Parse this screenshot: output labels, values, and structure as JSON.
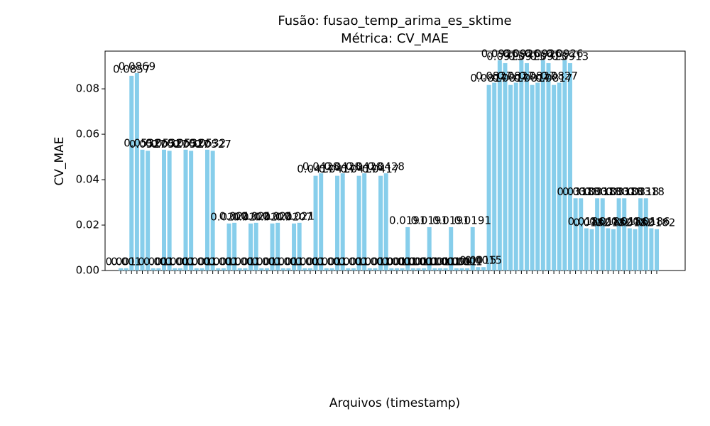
{
  "chart_data": {
    "type": "bar",
    "title": "Fusão: fusao_temp_arima_es_sktime",
    "subtitle": "Métrica: CV_MAE",
    "x_label": "Arquivos (timestamp)",
    "y_label": "CV_MAE",
    "color": "#87ceeb",
    "categories": [
      null,
      null,
      null,
      null,
      null,
      null,
      null,
      null,
      null,
      null,
      null,
      null,
      null,
      null,
      null,
      null,
      null,
      null,
      null,
      null,
      null,
      null,
      null,
      null,
      null,
      null,
      null,
      null,
      null,
      null,
      null,
      null,
      null,
      null,
      null,
      null,
      null,
      null,
      null,
      null,
      null,
      null,
      null,
      null,
      null,
      null,
      null,
      null,
      null,
      null,
      null,
      null,
      null,
      null,
      null,
      null,
      null,
      null,
      null,
      null,
      null,
      null,
      null,
      null,
      null,
      null,
      null,
      null,
      null,
      null,
      null,
      null,
      null,
      null,
      null,
      null,
      null,
      null,
      null,
      null,
      null,
      null,
      null,
      null,
      null,
      null,
      null,
      null,
      null,
      null,
      null,
      null,
      null,
      null,
      null,
      null,
      null,
      null,
      null,
      null
    ],
    "values": [
      0.001,
      0.001,
      0.0857,
      0.0869,
      0.0532,
      0.0527,
      0.001,
      0.001,
      0.0532,
      0.0527,
      0.001,
      0.001,
      0.0532,
      0.0527,
      0.001,
      0.001,
      0.0532,
      0.0527,
      0.001,
      0.001,
      0.0207,
      0.021,
      0.001,
      0.001,
      0.0207,
      0.021,
      0.001,
      0.001,
      0.0207,
      0.021,
      0.001,
      0.001,
      0.0207,
      0.021,
      0.001,
      0.001,
      0.0417,
      0.0428,
      0.001,
      0.001,
      0.0417,
      0.0428,
      0.001,
      0.001,
      0.0417,
      0.0428,
      0.001,
      0.001,
      0.0417,
      0.0428,
      0.001,
      0.001,
      0.001,
      0.0191,
      0.001,
      0.001,
      0.001,
      0.0191,
      0.001,
      0.001,
      0.001,
      0.0191,
      0.001,
      0.001,
      0.001,
      0.0191,
      0.0015,
      0.0015,
      0.0817,
      0.0827,
      0.0926,
      0.0913,
      0.0817,
      0.0827,
      0.0926,
      0.0913,
      0.0817,
      0.0827,
      0.0926,
      0.0913,
      0.0817,
      0.0827,
      0.0926,
      0.0913,
      0.0318,
      0.0318,
      0.0186,
      0.0182,
      0.0318,
      0.0318,
      0.0186,
      0.0182,
      0.0318,
      0.0318,
      0.0186,
      0.0182,
      0.0318,
      0.0318,
      0.0186,
      0.0182
    ],
    "ylim": [
      0,
      0.0966
    ],
    "yticks": [
      {
        "value": 0,
        "label": "0.00"
      },
      {
        "value": 0.02,
        "label": "0.02"
      },
      {
        "value": 0.04,
        "label": "0.04"
      },
      {
        "value": 0.06,
        "label": "0.06"
      },
      {
        "value": 0.08,
        "label": "0.08"
      }
    ],
    "grid": false
  }
}
